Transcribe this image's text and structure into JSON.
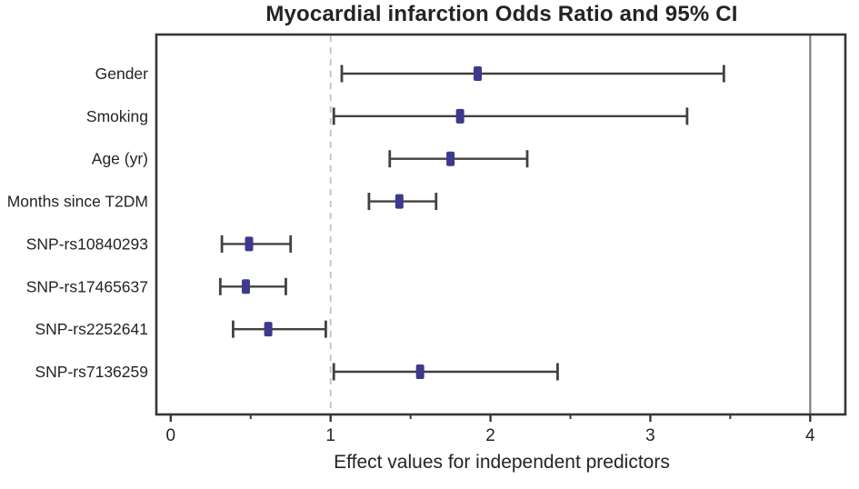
{
  "chart_data": {
    "type": "forest",
    "title": "Myocardial infarction Odds Ratio and 95% CI",
    "xlabel": "Effect values for independent predictors",
    "xlim": [
      -0.09,
      4.22
    ],
    "x_major_ticks": [
      0,
      1,
      2,
      3,
      4
    ],
    "x_minor_ticks": [
      0.5,
      1.5,
      2.5,
      3.5
    ],
    "reference_lines": {
      "dashed_at": 1,
      "solid_at": 4
    },
    "legend": "none",
    "grid": "off",
    "rows": [
      {
        "label": "Gender",
        "odds_ratio": 1.92,
        "ci_low": 1.07,
        "ci_high": 3.46
      },
      {
        "label": "Smoking",
        "odds_ratio": 1.81,
        "ci_low": 1.02,
        "ci_high": 3.23
      },
      {
        "label": "Age (yr)",
        "odds_ratio": 1.75,
        "ci_low": 1.37,
        "ci_high": 2.23
      },
      {
        "label": "Months since T2DM",
        "odds_ratio": 1.43,
        "ci_low": 1.24,
        "ci_high": 1.66
      },
      {
        "label": "SNP-rs10840293",
        "odds_ratio": 0.49,
        "ci_low": 0.32,
        "ci_high": 0.75
      },
      {
        "label": "SNP-rs17465637",
        "odds_ratio": 0.47,
        "ci_low": 0.31,
        "ci_high": 0.72
      },
      {
        "label": "SNP-rs2252641",
        "odds_ratio": 0.61,
        "ci_low": 0.39,
        "ci_high": 0.97
      },
      {
        "label": "SNP-rs7136259",
        "odds_ratio": 1.56,
        "ci_low": 1.02,
        "ci_high": 2.42
      }
    ]
  },
  "colors": {
    "marker": "#3d3a8c",
    "ci_line": "#45403c",
    "dashed_reference": "#c1c0bf",
    "solid_reference": "#8b8785",
    "plot_border": "#3a3531",
    "text": "#272320",
    "background": "#ffffff"
  }
}
